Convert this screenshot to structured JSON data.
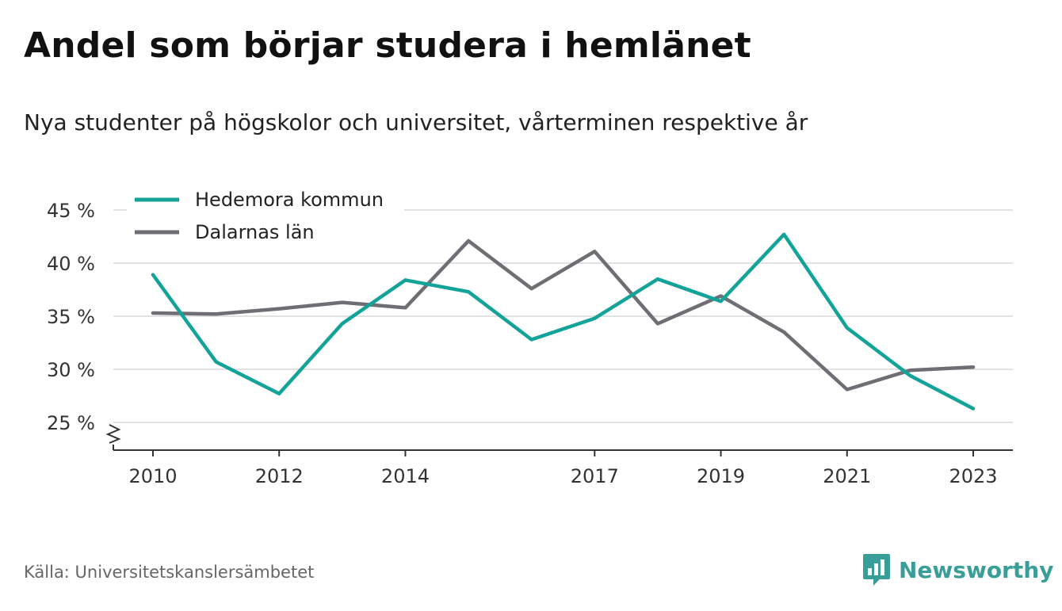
{
  "title": "Andel som börjar studera i hemlänet",
  "subtitle": "Nya studenter på högskolor och universitet, vårterminen respektive år",
  "source": "Källa: Universitetskanslersämbetet",
  "brand": {
    "name": "Newsworthy",
    "icon": "newsworthy-logo-icon",
    "color": "#3a9e98"
  },
  "chart_data": {
    "type": "line",
    "x": [
      2010,
      2011,
      2012,
      2013,
      2014,
      2015,
      2016,
      2017,
      2018,
      2019,
      2020,
      2021,
      2022,
      2023
    ],
    "x_tick_values": [
      2010,
      2012,
      2014,
      2017,
      2019,
      2021,
      2023
    ],
    "x_tick_labels": [
      "2010",
      "2012",
      "2014",
      "2017",
      "2019",
      "2021",
      "2023"
    ],
    "ylim": [
      22.5,
      45
    ],
    "y_tick_values": [
      25,
      30,
      35,
      40,
      45
    ],
    "y_tick_labels": [
      "25 %",
      "30 %",
      "35 %",
      "40 %",
      "45 %"
    ],
    "y_axis_break": true,
    "grid": true,
    "legend_position": "top-left",
    "series": [
      {
        "name": "Hedemora kommun",
        "color": "#14a398",
        "values": [
          38.9,
          30.7,
          27.7,
          34.3,
          38.4,
          37.3,
          32.8,
          34.8,
          38.5,
          36.4,
          42.7,
          33.9,
          29.4,
          26.3
        ]
      },
      {
        "name": "Dalarnas län",
        "color": "#6e6e74",
        "values": [
          35.3,
          35.2,
          35.7,
          36.3,
          35.8,
          42.1,
          37.6,
          41.1,
          34.3,
          36.9,
          33.5,
          28.1,
          29.9,
          30.2
        ]
      }
    ]
  }
}
